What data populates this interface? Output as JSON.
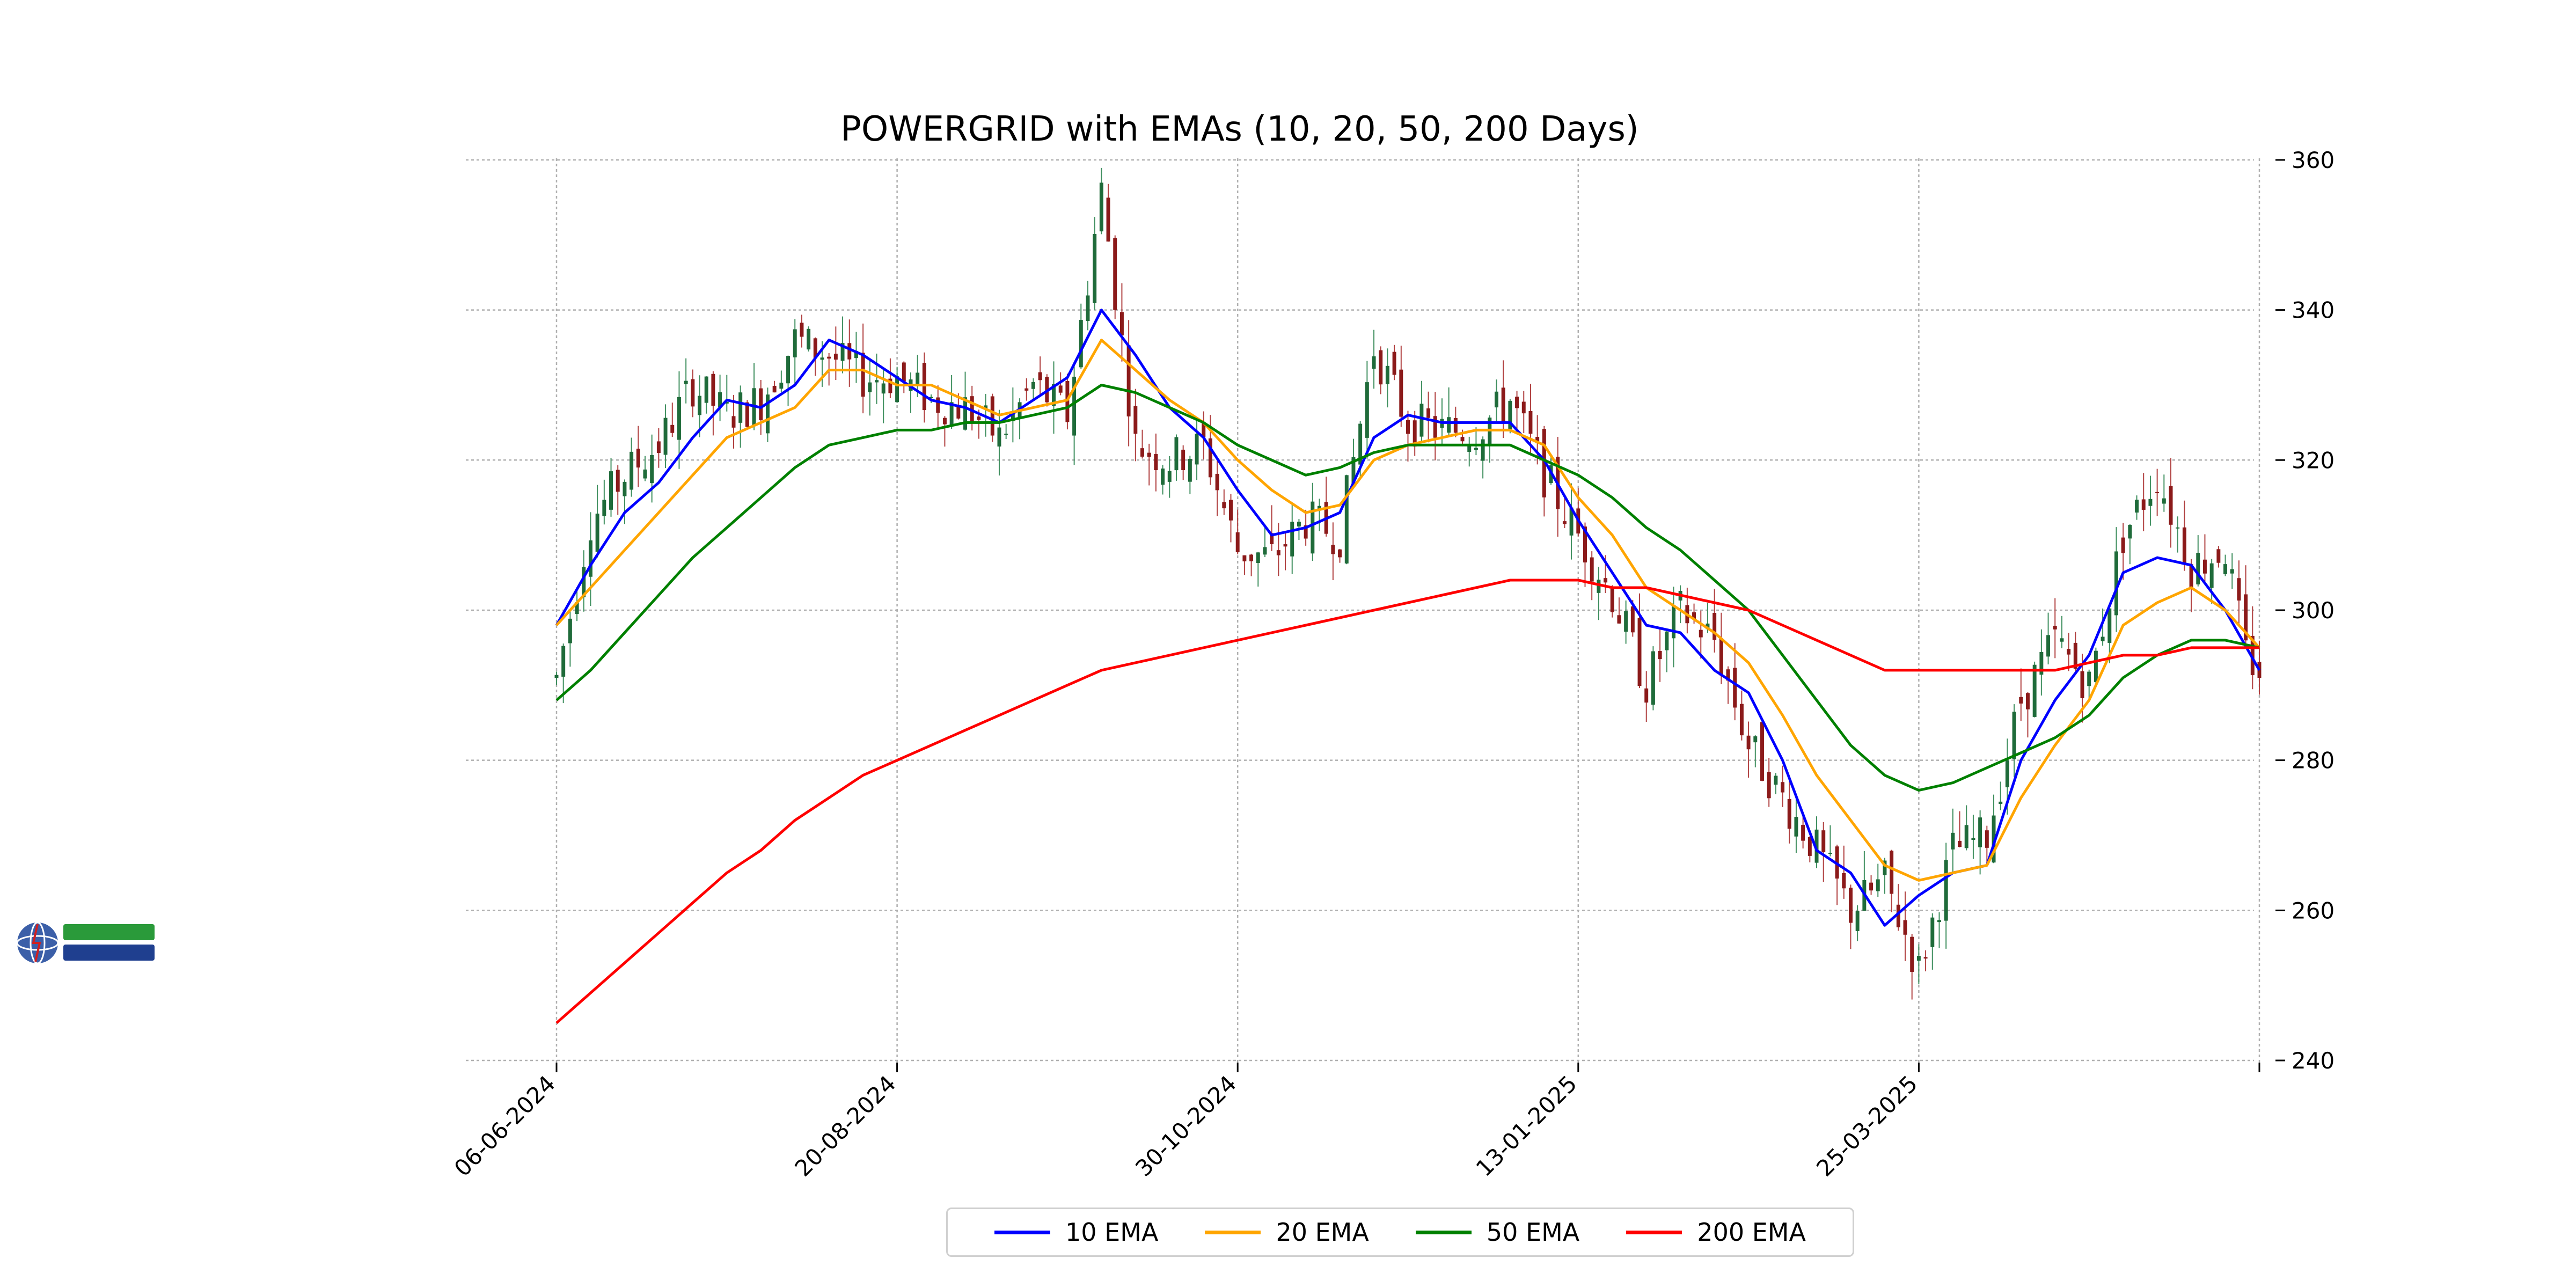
{
  "chart_data": {
    "type": "candlestick_with_lines",
    "title": "POWERGRID with EMAs (10, 20, 50, 200 Days)",
    "xlabel": "",
    "ylabel": "",
    "ylim": [
      240,
      362
    ],
    "y_ticks": [
      240,
      260,
      280,
      300,
      320,
      340,
      360
    ],
    "x_tick_labels": [
      "06-06-2024",
      "20-08-2024",
      "30-10-2024",
      "13-01-2025",
      "25-03-2025",
      ""
    ],
    "x_tick_index": [
      0,
      50,
      100,
      150,
      200,
      250
    ],
    "x_range": [
      0,
      250
    ],
    "y_axis_side": "right",
    "grid": true,
    "legend_position": "bottom-center",
    "candle_colors": {
      "up": "#1f6b3a",
      "down": "#8b1a1a",
      "wick_up": "#3f8f5f",
      "wick_down": "#b04040"
    },
    "price_path": [
      [
        0,
        291
      ],
      [
        5,
        312
      ],
      [
        10,
        318
      ],
      [
        15,
        322
      ],
      [
        20,
        330
      ],
      [
        25,
        326
      ],
      [
        30,
        328
      ],
      [
        35,
        336
      ],
      [
        40,
        334
      ],
      [
        45,
        331
      ],
      [
        50,
        331
      ],
      [
        55,
        328
      ],
      [
        60,
        327
      ],
      [
        65,
        323
      ],
      [
        70,
        330
      ],
      [
        75,
        326
      ],
      [
        80,
        356
      ],
      [
        85,
        322
      ],
      [
        90,
        320
      ],
      [
        95,
        322
      ],
      [
        100,
        308
      ],
      [
        105,
        307
      ],
      [
        110,
        312
      ],
      [
        115,
        310
      ],
      [
        120,
        335
      ],
      [
        125,
        325
      ],
      [
        130,
        324
      ],
      [
        135,
        324
      ],
      [
        140,
        328
      ],
      [
        145,
        318
      ],
      [
        150,
        310
      ],
      [
        155,
        302
      ],
      [
        160,
        290
      ],
      [
        165,
        300
      ],
      [
        170,
        296
      ],
      [
        175,
        282
      ],
      [
        180,
        275
      ],
      [
        185,
        268
      ],
      [
        190,
        260
      ],
      [
        195,
        264
      ],
      [
        200,
        252
      ],
      [
        205,
        268
      ],
      [
        210,
        270
      ],
      [
        215,
        288
      ],
      [
        220,
        296
      ],
      [
        225,
        290
      ],
      [
        230,
        310
      ],
      [
        235,
        318
      ],
      [
        240,
        306
      ],
      [
        245,
        308
      ],
      [
        248,
        294
      ],
      [
        250,
        292
      ]
    ],
    "series": [
      {
        "name": "10 EMA",
        "color": "#0000ff",
        "x": [
          0,
          5,
          10,
          15,
          20,
          25,
          30,
          35,
          40,
          45,
          50,
          55,
          60,
          65,
          70,
          75,
          80,
          85,
          90,
          95,
          100,
          105,
          110,
          115,
          120,
          125,
          130,
          135,
          140,
          145,
          150,
          155,
          160,
          165,
          170,
          175,
          180,
          185,
          190,
          195,
          200,
          205,
          210,
          215,
          220,
          225,
          230,
          235,
          240,
          245,
          250
        ],
        "values": [
          298,
          306,
          313,
          317,
          323,
          328,
          327,
          330,
          336,
          334,
          331,
          328,
          327,
          325,
          328,
          331,
          340,
          334,
          327,
          323,
          316,
          310,
          311,
          313,
          323,
          326,
          325,
          325,
          325,
          320,
          312,
          305,
          298,
          297,
          292,
          289,
          280,
          268,
          265,
          258,
          262,
          265,
          266,
          280,
          288,
          294,
          305,
          307,
          306,
          300,
          292
        ]
      },
      {
        "name": "20 EMA",
        "color": "#ffa500",
        "x": [
          0,
          5,
          10,
          15,
          20,
          25,
          30,
          35,
          40,
          45,
          50,
          55,
          60,
          65,
          70,
          75,
          80,
          85,
          90,
          95,
          100,
          105,
          110,
          115,
          120,
          125,
          130,
          135,
          140,
          145,
          150,
          155,
          160,
          165,
          170,
          175,
          180,
          185,
          190,
          195,
          200,
          205,
          210,
          215,
          220,
          225,
          230,
          235,
          240,
          245,
          250
        ],
        "values": [
          298,
          303,
          308,
          313,
          318,
          323,
          325,
          327,
          332,
          332,
          330,
          330,
          328,
          326,
          327,
          328,
          336,
          332,
          328,
          325,
          320,
          316,
          313,
          314,
          320,
          322,
          323,
          324,
          324,
          322,
          315,
          310,
          303,
          300,
          297,
          293,
          286,
          278,
          272,
          266,
          264,
          265,
          266,
          275,
          282,
          288,
          298,
          301,
          303,
          300,
          295
        ]
      },
      {
        "name": "50 EMA",
        "color": "#008000",
        "x": [
          0,
          5,
          10,
          15,
          20,
          25,
          30,
          35,
          40,
          45,
          50,
          55,
          60,
          65,
          70,
          75,
          80,
          85,
          90,
          95,
          100,
          105,
          110,
          115,
          120,
          125,
          130,
          135,
          140,
          145,
          150,
          155,
          160,
          165,
          170,
          175,
          180,
          185,
          190,
          195,
          200,
          205,
          210,
          215,
          220,
          225,
          230,
          235,
          240,
          245,
          250
        ],
        "values": [
          288,
          292,
          297,
          302,
          307,
          311,
          315,
          319,
          322,
          323,
          324,
          324,
          325,
          325,
          326,
          327,
          330,
          329,
          327,
          325,
          322,
          320,
          318,
          319,
          321,
          322,
          322,
          322,
          322,
          320,
          318,
          315,
          311,
          308,
          304,
          300,
          294,
          288,
          282,
          278,
          276,
          277,
          279,
          281,
          283,
          286,
          291,
          294,
          296,
          296,
          295
        ]
      },
      {
        "name": "200 EMA",
        "color": "#ff0000",
        "x": [
          0,
          5,
          10,
          15,
          20,
          25,
          30,
          35,
          40,
          45,
          50,
          55,
          60,
          65,
          70,
          75,
          80,
          85,
          90,
          95,
          100,
          105,
          110,
          115,
          120,
          125,
          130,
          135,
          140,
          145,
          150,
          155,
          160,
          165,
          170,
          175,
          180,
          185,
          190,
          195,
          200,
          205,
          210,
          215,
          220,
          225,
          230,
          235,
          240,
          245,
          250
        ],
        "values": [
          245,
          249,
          253,
          257,
          261,
          265,
          268,
          272,
          275,
          278,
          280,
          282,
          284,
          286,
          288,
          290,
          292,
          293,
          294,
          295,
          296,
          297,
          298,
          299,
          300,
          301,
          302,
          303,
          304,
          304,
          304,
          303,
          303,
          302,
          301,
          300,
          298,
          296,
          294,
          292,
          292,
          292,
          292,
          292,
          292,
          293,
          294,
          294,
          295,
          295,
          295
        ]
      }
    ]
  }
}
